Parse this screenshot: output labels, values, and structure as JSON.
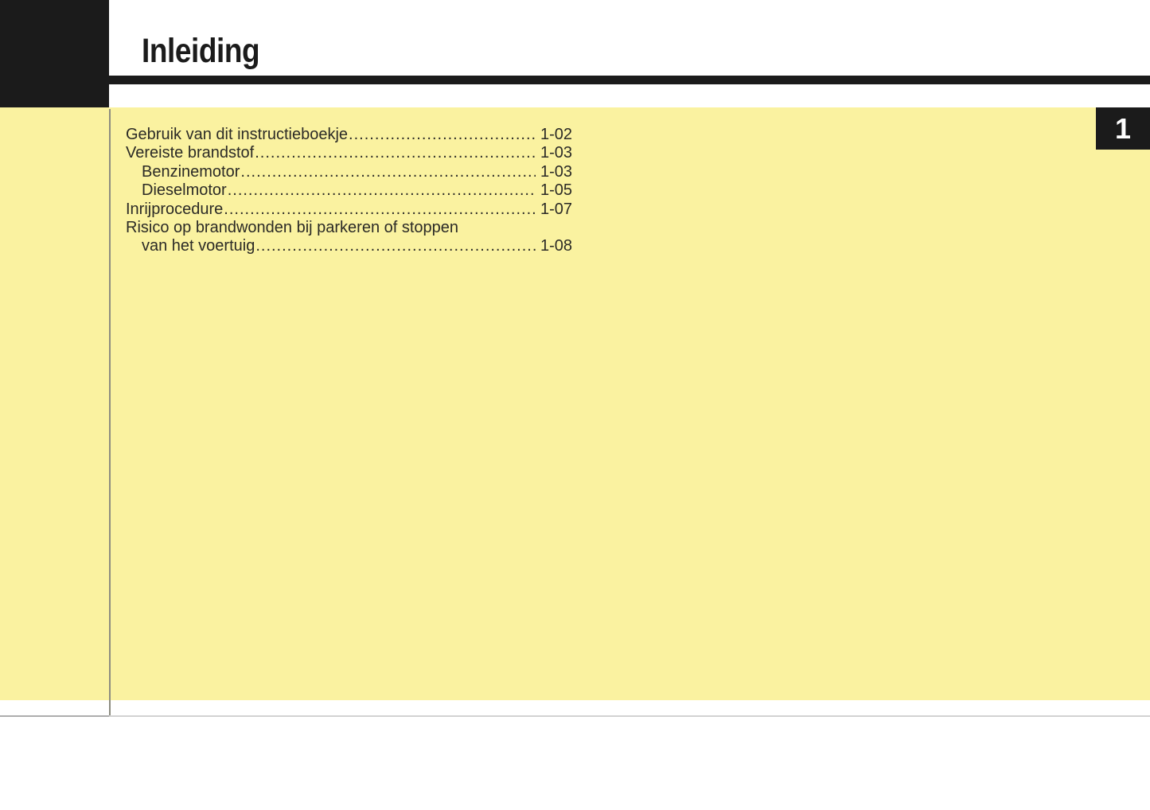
{
  "document": {
    "chapter_title": "Inleiding",
    "chapter_number": "1"
  },
  "toc": {
    "entries": [
      {
        "label": "Gebruik van dit instructieboekje",
        "page": "1-02",
        "indent": 0,
        "leader": true
      },
      {
        "label": "Vereiste brandstof",
        "page": "1-03",
        "indent": 0,
        "leader": true
      },
      {
        "label": "Benzinemotor",
        "page": "1-03",
        "indent": 1,
        "leader": true
      },
      {
        "label": "Dieselmotor",
        "page": "1-05",
        "indent": 1,
        "leader": true
      },
      {
        "label": "Inrijprocedure",
        "page": "1-07",
        "indent": 0,
        "leader": true
      },
      {
        "label": "Risico op brandwonden bij parkeren of stoppen",
        "page": "",
        "indent": 0,
        "leader": false
      },
      {
        "label": "van het voertuig",
        "page": "1-08",
        "indent": 1,
        "leader": true
      }
    ]
  },
  "colors": {
    "print_black": "#1b1b1b",
    "page_yellow": "#faf2a0",
    "body_text": "#2b2a26",
    "column_divider_gray": "#8c8c80",
    "footer_rule_gray": "#d2d2d2"
  }
}
